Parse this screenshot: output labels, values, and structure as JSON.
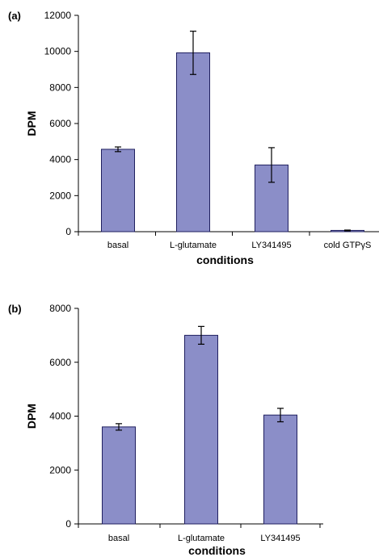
{
  "chart_data": [
    {
      "panel_label": "(a)",
      "type": "bar",
      "categories": [
        "basal",
        "L-glutamate",
        "LY341495",
        "cold GTPγS"
      ],
      "values": [
        4570,
        9920,
        3700,
        70
      ],
      "errors": [
        130,
        1200,
        960,
        20
      ],
      "xlabel": "conditions",
      "ylabel": "DPM",
      "ylim": [
        0,
        12000
      ],
      "yticks": [
        0,
        2000,
        4000,
        6000,
        8000,
        10000,
        12000
      ],
      "bar_color": "#8b8ec8",
      "grid": false,
      "legend": "none"
    },
    {
      "panel_label": "(b)",
      "type": "bar",
      "categories": [
        "basal",
        "L-glutamate",
        "LY341495"
      ],
      "values": [
        3600,
        7000,
        4040
      ],
      "errors": [
        120,
        330,
        250
      ],
      "xlabel": "conditions",
      "ylabel": "DPM",
      "ylim": [
        0,
        8000
      ],
      "yticks": [
        0,
        2000,
        4000,
        6000,
        8000
      ],
      "bar_color": "#8b8ec8",
      "grid": false,
      "legend": "none"
    }
  ]
}
